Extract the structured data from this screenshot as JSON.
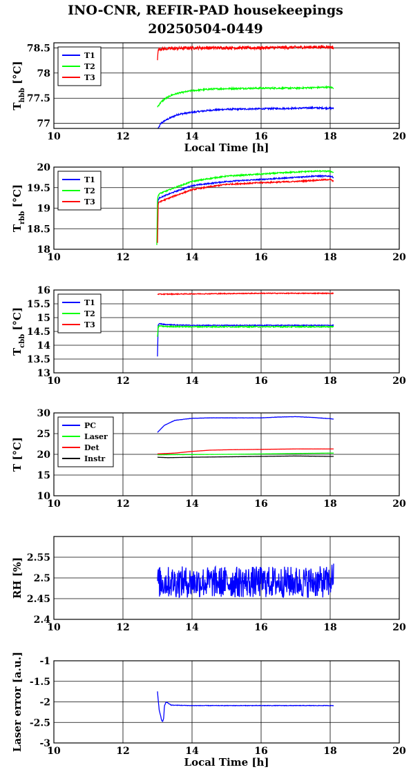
{
  "title": {
    "line1": "INO-CNR, REFIR-PAD housekeepings",
    "line2": "20250504-0449"
  },
  "chart_data": [
    {
      "type": "line",
      "ylabel": "T",
      "ylabel_sub": "hbb",
      "ylabel_unit": " [°C]",
      "xlabel": "Local Time [h]",
      "xlim": [
        10,
        20
      ],
      "ylim": [
        76.9,
        78.6
      ],
      "xticks": [
        "10",
        "12",
        "14",
        "16",
        "18",
        "20"
      ],
      "yticks": [
        {
          "v": 77,
          "t": "77"
        },
        {
          "v": 77.5,
          "t": "77.5"
        },
        {
          "v": 78,
          "t": "78"
        },
        {
          "v": 78.5,
          "t": "78.5"
        }
      ],
      "grid": true,
      "legend": "top-left",
      "series": [
        {
          "name": "T1",
          "color": "#0000ff",
          "x": [
            13.0,
            13.1,
            13.2,
            13.4,
            13.6,
            14.0,
            14.5,
            15.0,
            16.0,
            17.0,
            17.5,
            18.0,
            18.1
          ],
          "y": [
            76.87,
            77.0,
            77.05,
            77.12,
            77.18,
            77.22,
            77.26,
            77.28,
            77.29,
            77.3,
            77.31,
            77.3,
            77.3
          ],
          "noise": 0.015,
          "x0": 13.0,
          "x1": 18.1
        },
        {
          "name": "T2",
          "color": "#00ff00",
          "x": [
            13.0,
            13.1,
            13.2,
            13.4,
            13.6,
            14.0,
            14.5,
            15.0,
            16.0,
            17.0,
            18.0,
            18.1
          ],
          "y": [
            77.33,
            77.42,
            77.48,
            77.56,
            77.6,
            77.65,
            77.68,
            77.69,
            77.7,
            77.7,
            77.72,
            77.7
          ],
          "noise": 0.015,
          "x0": 13.0,
          "x1": 18.1
        },
        {
          "name": "T3",
          "color": "#ff0000",
          "x": [
            13.0,
            13.02,
            13.05,
            13.2,
            14.0,
            15.0,
            16.0,
            17.0,
            18.0,
            18.1
          ],
          "y": [
            78.27,
            78.45,
            78.48,
            78.48,
            78.5,
            78.5,
            78.5,
            78.51,
            78.52,
            78.5
          ],
          "noise": 0.03,
          "x0": 13.0,
          "x1": 18.1
        }
      ]
    },
    {
      "type": "line",
      "ylabel": "T",
      "ylabel_sub": "rbb",
      "ylabel_unit": " [°C]",
      "xlabel": "",
      "xlim": [
        10,
        20
      ],
      "ylim": [
        18,
        20
      ],
      "xticks": [
        "10",
        "12",
        "14",
        "16",
        "18",
        "20"
      ],
      "yticks": [
        {
          "v": 18,
          "t": "18"
        },
        {
          "v": 18.5,
          "t": "18.5"
        },
        {
          "v": 19,
          "t": "19"
        },
        {
          "v": 19.5,
          "t": "19.5"
        },
        {
          "v": 20,
          "t": "20"
        }
      ],
      "grid": true,
      "legend": "top-left",
      "series": [
        {
          "name": "T1",
          "color": "#0000ff",
          "x": [
            13.0,
            13.02,
            13.05,
            13.2,
            13.5,
            14.0,
            14.5,
            15.0,
            16.0,
            17.0,
            17.5,
            18.0,
            18.1
          ],
          "y": [
            19.05,
            19.2,
            19.25,
            19.3,
            19.4,
            19.55,
            19.6,
            19.65,
            19.7,
            19.75,
            19.78,
            19.78,
            19.75
          ],
          "noise": 0.015,
          "x0": 13.0,
          "x1": 18.1
        },
        {
          "name": "T2",
          "color": "#00ff00",
          "x": [
            12.98,
            13.0,
            13.02,
            13.05,
            13.2,
            13.5,
            14.0,
            14.5,
            15.0,
            16.0,
            17.0,
            17.5,
            18.0,
            18.1
          ],
          "y": [
            18.1,
            19.2,
            19.3,
            19.35,
            19.4,
            19.5,
            19.65,
            19.72,
            19.78,
            19.83,
            19.88,
            19.9,
            19.9,
            19.87
          ],
          "noise": 0.015,
          "x0": 12.98,
          "x1": 18.1
        },
        {
          "name": "T3",
          "color": "#ff0000",
          "x": [
            13.0,
            13.02,
            13.05,
            13.2,
            13.5,
            14.0,
            14.5,
            15.0,
            16.0,
            17.0,
            18.0,
            18.1
          ],
          "y": [
            18.15,
            19.1,
            19.15,
            19.2,
            19.3,
            19.45,
            19.52,
            19.58,
            19.62,
            19.65,
            19.7,
            19.65
          ],
          "noise": 0.015,
          "x0": 13.0,
          "x1": 18.1
        }
      ]
    },
    {
      "type": "line",
      "ylabel": "T",
      "ylabel_sub": "cbb",
      "ylabel_unit": " [°C]",
      "xlabel": "",
      "xlim": [
        10,
        20
      ],
      "ylim": [
        13,
        16
      ],
      "xticks": [
        "10",
        "12",
        "14",
        "16",
        "18",
        "20"
      ],
      "yticks": [
        {
          "v": 13,
          "t": "13"
        },
        {
          "v": 13.5,
          "t": "13.5"
        },
        {
          "v": 14,
          "t": "14"
        },
        {
          "v": 14.5,
          "t": "14.5"
        },
        {
          "v": 15,
          "t": "15"
        },
        {
          "v": 15.5,
          "t": "15.5"
        },
        {
          "v": 16,
          "t": "16"
        }
      ],
      "grid": true,
      "legend": "top-left",
      "series": [
        {
          "name": "T1",
          "color": "#0000ff",
          "x": [
            13.0,
            13.02,
            13.05,
            13.2,
            14.0,
            15.0,
            16.0,
            17.0,
            18.0,
            18.1
          ],
          "y": [
            13.6,
            14.75,
            14.78,
            14.75,
            14.72,
            14.72,
            14.72,
            14.72,
            14.72,
            14.72
          ],
          "noise": 0.015,
          "x0": 13.0,
          "x1": 18.1
        },
        {
          "name": "T2",
          "color": "#00ff00",
          "x": [
            13.0,
            13.02,
            13.05,
            13.2,
            14.0,
            15.0,
            16.0,
            17.0,
            18.0,
            18.1
          ],
          "y": [
            14.3,
            14.65,
            14.7,
            14.68,
            14.67,
            14.67,
            14.67,
            14.67,
            14.67,
            14.67
          ],
          "noise": 0.02,
          "x0": 13.0,
          "x1": 18.1
        },
        {
          "name": "T3",
          "color": "#ff0000",
          "x": [
            13.0,
            13.2,
            14.0,
            15.0,
            16.0,
            17.0,
            18.0,
            18.1
          ],
          "y": [
            15.85,
            15.85,
            15.86,
            15.87,
            15.88,
            15.88,
            15.88,
            15.88
          ],
          "noise": 0.015,
          "x0": 13.0,
          "x1": 18.1
        }
      ]
    },
    {
      "type": "line",
      "ylabel": "T [°C]",
      "ylabel_sub": "",
      "ylabel_unit": "",
      "xlabel": "",
      "xlim": [
        10,
        20
      ],
      "ylim": [
        10,
        30
      ],
      "xticks": [
        "10",
        "12",
        "14",
        "16",
        "18",
        "20"
      ],
      "yticks": [
        {
          "v": 10,
          "t": "10"
        },
        {
          "v": 15,
          "t": "15"
        },
        {
          "v": 20,
          "t": "20"
        },
        {
          "v": 25,
          "t": "25"
        },
        {
          "v": 30,
          "t": "30"
        }
      ],
      "grid": true,
      "legend": "top-left",
      "series": [
        {
          "name": "PC",
          "color": "#0000ff",
          "x": [
            13.0,
            13.2,
            13.5,
            14.0,
            14.5,
            15.0,
            16.0,
            16.5,
            17.0,
            17.5,
            18.0,
            18.1
          ],
          "y": [
            25.3,
            27.0,
            28.2,
            28.7,
            28.8,
            28.8,
            28.8,
            29.0,
            29.1,
            28.9,
            28.6,
            28.5
          ],
          "noise": 0.03,
          "x0": 13.0,
          "x1": 18.1
        },
        {
          "name": "Laser",
          "color": "#00ff00",
          "x": [
            13.0,
            14.0,
            15.0,
            16.0,
            17.0,
            18.0,
            18.1
          ],
          "y": [
            19.9,
            19.95,
            20.0,
            20.1,
            20.2,
            20.3,
            20.3
          ],
          "noise": 0.01,
          "x0": 13.0,
          "x1": 18.1
        },
        {
          "name": "Det",
          "color": "#ff0000",
          "x": [
            13.0,
            13.5,
            14.0,
            14.5,
            15.0,
            16.0,
            17.0,
            18.0,
            18.1
          ],
          "y": [
            20.1,
            20.3,
            20.7,
            21.0,
            21.1,
            21.2,
            21.3,
            21.3,
            21.3
          ],
          "noise": 0.01,
          "x0": 13.0,
          "x1": 18.1
        },
        {
          "name": "Instr",
          "color": "#000000",
          "x": [
            13.0,
            13.3,
            14.0,
            15.0,
            16.0,
            17.0,
            18.0,
            18.1
          ],
          "y": [
            19.3,
            19.2,
            19.3,
            19.4,
            19.5,
            19.6,
            19.5,
            19.5
          ],
          "noise": 0.01,
          "x0": 13.0,
          "x1": 18.1
        }
      ]
    },
    {
      "type": "line",
      "ylabel": "RH [%]",
      "ylabel_sub": "",
      "ylabel_unit": "",
      "xlabel": "",
      "xlim": [
        10,
        20
      ],
      "ylim": [
        2.4,
        2.6
      ],
      "xticks": [
        "10",
        "12",
        "14",
        "16",
        "18",
        "20"
      ],
      "yticks": [
        {
          "v": 2.4,
          "t": "2.4"
        },
        {
          "v": 2.45,
          "t": "2.45"
        },
        {
          "v": 2.5,
          "t": "2.5"
        },
        {
          "v": 2.55,
          "t": "2.55"
        }
      ],
      "grid": true,
      "legend": "none",
      "series": [
        {
          "name": "",
          "color": "#0000ff",
          "x": [
            13.0,
            14.0,
            15.0,
            16.0,
            17.0,
            18.0,
            18.1
          ],
          "y": [
            2.49,
            2.49,
            2.49,
            2.49,
            2.49,
            2.49,
            2.51
          ],
          "noise": 0.038,
          "x0": 13.0,
          "x1": 18.1
        }
      ]
    },
    {
      "type": "line",
      "ylabel": "Laser error [a.u.]",
      "ylabel_sub": "",
      "ylabel_unit": "",
      "xlabel": "Local Time [h]",
      "xlim": [
        10,
        20
      ],
      "ylim": [
        -3,
        -1
      ],
      "xticks": [
        "10",
        "12",
        "14",
        "16",
        "18",
        "20"
      ],
      "yticks": [
        {
          "v": -3,
          "t": "-3"
        },
        {
          "v": -2.5,
          "t": "-2.5"
        },
        {
          "v": -2,
          "t": "-2"
        },
        {
          "v": -1.5,
          "t": "-1.5"
        },
        {
          "v": -1,
          "t": "-1"
        }
      ],
      "grid": true,
      "legend": "none",
      "series": [
        {
          "name": "",
          "color": "#0000ff",
          "x": [
            13.0,
            13.02,
            13.05,
            13.08,
            13.12,
            13.15,
            13.18,
            13.2,
            13.25,
            13.4,
            14.0,
            15.0,
            16.0,
            17.0,
            18.0,
            18.1
          ],
          "y": [
            -1.75,
            -1.95,
            -2.2,
            -2.3,
            -2.45,
            -2.48,
            -2.4,
            -2.1,
            -2.0,
            -2.08,
            -2.09,
            -2.09,
            -2.09,
            -2.09,
            -2.09,
            -2.09
          ],
          "noise": 0.006,
          "x0": 13.0,
          "x1": 18.1
        }
      ]
    }
  ]
}
